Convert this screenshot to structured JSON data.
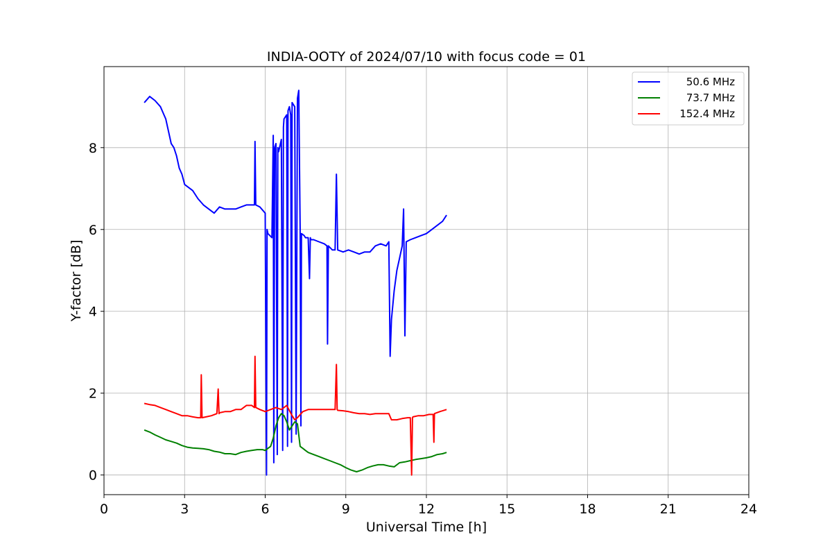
{
  "chart_data": {
    "type": "line",
    "title": "INDIA-OOTY of 2024/07/10 with focus code = 01",
    "xlabel": "Universal Time [h]",
    "ylabel": "Y-factor [dB]",
    "xlim": [
      0,
      24
    ],
    "ylim": [
      -0.48,
      9.98
    ],
    "xticks": [
      0,
      3,
      6,
      9,
      12,
      15,
      18,
      21,
      24
    ],
    "yticks": [
      0,
      2,
      4,
      6,
      8
    ],
    "grid": true,
    "legend_position": "top-right",
    "series": [
      {
        "name": "50.6 MHz",
        "color": "#0000ff",
        "x": [
          1.5,
          1.7,
          1.9,
          2.1,
          2.3,
          2.5,
          2.6,
          2.7,
          2.8,
          2.9,
          3.0,
          3.1,
          3.3,
          3.5,
          3.7,
          3.9,
          4.1,
          4.3,
          4.5,
          4.7,
          4.9,
          5.1,
          5.3,
          5.5,
          5.6,
          5.62,
          5.65,
          5.8,
          6.0,
          6.05,
          6.07,
          6.1,
          6.25,
          6.3,
          6.32,
          6.35,
          6.4,
          6.45,
          6.47,
          6.5,
          6.6,
          6.65,
          6.68,
          6.7,
          6.8,
          6.83,
          6.85,
          6.9,
          6.95,
          6.98,
          7.0,
          7.1,
          7.15,
          7.2,
          7.25,
          7.3,
          7.33,
          7.35,
          7.45,
          7.5,
          7.6,
          7.65,
          7.68,
          7.7,
          7.8,
          8.0,
          8.2,
          8.3,
          8.32,
          8.35,
          8.5,
          8.6,
          8.65,
          8.7,
          8.9,
          9.1,
          9.3,
          9.5,
          9.7,
          9.9,
          10.1,
          10.3,
          10.5,
          10.6,
          10.65,
          10.7,
          10.8,
          10.9,
          11.0,
          11.1,
          11.15,
          11.2,
          11.25,
          11.4,
          11.6,
          11.8,
          12.0,
          12.2,
          12.4,
          12.6,
          12.75
        ],
        "y": [
          9.1,
          9.25,
          9.15,
          9.0,
          8.7,
          8.1,
          8.0,
          7.8,
          7.5,
          7.35,
          7.1,
          7.05,
          6.95,
          6.75,
          6.6,
          6.5,
          6.4,
          6.55,
          6.5,
          6.5,
          6.5,
          6.55,
          6.6,
          6.6,
          6.6,
          8.15,
          6.6,
          6.55,
          6.4,
          0.0,
          6.0,
          5.9,
          5.8,
          8.3,
          0.3,
          8.0,
          8.1,
          0.5,
          8.0,
          7.9,
          8.2,
          0.6,
          8.5,
          8.7,
          8.8,
          0.7,
          8.9,
          9.0,
          8.8,
          0.8,
          9.1,
          9.0,
          1.0,
          9.2,
          9.4,
          6.0,
          1.2,
          5.9,
          5.85,
          5.8,
          5.8,
          4.8,
          5.8,
          5.75,
          5.75,
          5.7,
          5.65,
          5.6,
          3.2,
          5.6,
          5.5,
          5.5,
          7.35,
          5.5,
          5.45,
          5.5,
          5.45,
          5.4,
          5.45,
          5.45,
          5.6,
          5.65,
          5.6,
          5.7,
          2.9,
          3.8,
          4.5,
          5.0,
          5.3,
          5.6,
          6.5,
          3.4,
          5.7,
          5.75,
          5.8,
          5.85,
          5.9,
          6.0,
          6.1,
          6.2,
          6.35
        ]
      },
      {
        "name": "73.7 MHz",
        "color": "#008000",
        "x": [
          1.5,
          1.7,
          1.9,
          2.1,
          2.3,
          2.5,
          2.7,
          2.9,
          3.1,
          3.3,
          3.5,
          3.7,
          3.9,
          4.1,
          4.3,
          4.5,
          4.7,
          4.9,
          5.1,
          5.3,
          5.5,
          5.7,
          5.9,
          6.0,
          6.1,
          6.2,
          6.3,
          6.4,
          6.5,
          6.6,
          6.7,
          6.8,
          6.9,
          7.0,
          7.1,
          7.2,
          7.3,
          7.4,
          7.5,
          7.6,
          7.8,
          8.0,
          8.2,
          8.4,
          8.6,
          8.8,
          9.0,
          9.2,
          9.4,
          9.6,
          9.8,
          10.0,
          10.2,
          10.4,
          10.6,
          10.8,
          11.0,
          11.2,
          11.4,
          11.6,
          11.8,
          12.0,
          12.2,
          12.4,
          12.6,
          12.75
        ],
        "y": [
          1.1,
          1.05,
          0.98,
          0.92,
          0.86,
          0.82,
          0.78,
          0.72,
          0.68,
          0.66,
          0.65,
          0.64,
          0.62,
          0.58,
          0.56,
          0.52,
          0.52,
          0.5,
          0.55,
          0.58,
          0.6,
          0.62,
          0.62,
          0.6,
          0.65,
          0.7,
          0.9,
          1.2,
          1.4,
          1.5,
          1.45,
          1.3,
          1.1,
          1.2,
          1.3,
          1.25,
          0.7,
          0.65,
          0.6,
          0.55,
          0.5,
          0.45,
          0.4,
          0.35,
          0.3,
          0.25,
          0.18,
          0.12,
          0.08,
          0.12,
          0.18,
          0.22,
          0.25,
          0.25,
          0.22,
          0.2,
          0.3,
          0.32,
          0.35,
          0.38,
          0.4,
          0.42,
          0.45,
          0.5,
          0.52,
          0.55
        ]
      },
      {
        "name": "152.4 MHz",
        "color": "#ff0000",
        "x": [
          1.5,
          1.7,
          1.9,
          2.1,
          2.3,
          2.5,
          2.7,
          2.9,
          3.1,
          3.3,
          3.5,
          3.6,
          3.62,
          3.65,
          3.8,
          4.0,
          4.2,
          4.25,
          4.28,
          4.3,
          4.5,
          4.7,
          4.9,
          5.1,
          5.3,
          5.5,
          5.6,
          5.62,
          5.65,
          5.8,
          6.0,
          6.2,
          6.4,
          6.6,
          6.8,
          7.0,
          7.1,
          7.2,
          7.4,
          7.6,
          7.8,
          8.0,
          8.2,
          8.4,
          8.6,
          8.65,
          8.68,
          8.7,
          8.9,
          9.1,
          9.3,
          9.5,
          9.7,
          9.9,
          10.1,
          10.3,
          10.5,
          10.6,
          10.7,
          10.9,
          11.1,
          11.3,
          11.4,
          11.45,
          11.48,
          11.5,
          11.7,
          11.9,
          12.1,
          12.25,
          12.28,
          12.3,
          12.5,
          12.75
        ],
        "y": [
          1.75,
          1.72,
          1.7,
          1.65,
          1.6,
          1.55,
          1.5,
          1.45,
          1.45,
          1.42,
          1.4,
          1.4,
          2.45,
          1.4,
          1.42,
          1.45,
          1.5,
          2.1,
          1.5,
          1.52,
          1.55,
          1.55,
          1.6,
          1.6,
          1.7,
          1.7,
          1.65,
          2.9,
          1.65,
          1.6,
          1.55,
          1.6,
          1.65,
          1.6,
          1.7,
          1.45,
          1.35,
          1.4,
          1.55,
          1.6,
          1.6,
          1.6,
          1.6,
          1.6,
          1.6,
          2.7,
          1.6,
          1.58,
          1.57,
          1.55,
          1.52,
          1.5,
          1.5,
          1.48,
          1.5,
          1.5,
          1.5,
          1.5,
          1.35,
          1.35,
          1.38,
          1.4,
          1.4,
          0.0,
          1.4,
          1.42,
          1.45,
          1.45,
          1.48,
          1.48,
          0.8,
          1.5,
          1.55,
          1.6
        ]
      }
    ]
  }
}
